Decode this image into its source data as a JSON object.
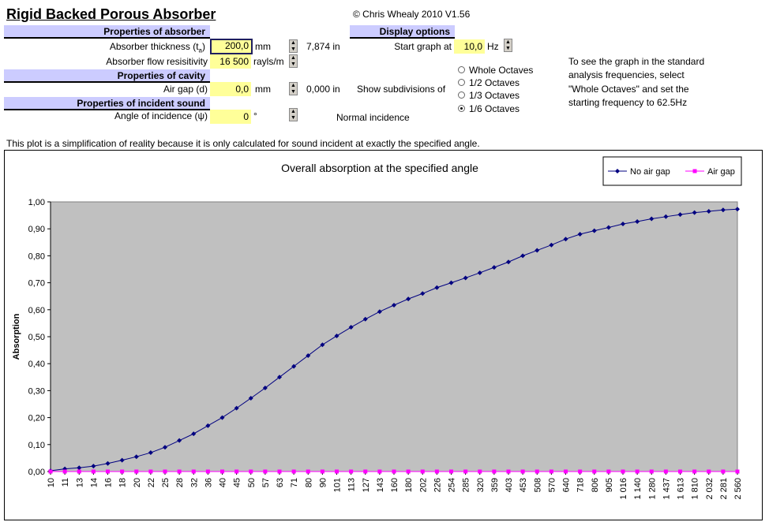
{
  "title": "Rigid Backed Porous Absorber",
  "copyright": "© Chris Whealy 2010  V1.56",
  "sections": {
    "absorber": "Properties of absorber",
    "cavity": "Properties of cavity",
    "incident": "Properties of incident sound",
    "display": "Display options"
  },
  "fields": {
    "thickness_label": "Absorber thickness (t",
    "thickness_sub": "a",
    "thickness_close": ")",
    "thickness_value": "200,0",
    "thickness_unit": "mm",
    "thickness_in": "7,874  in",
    "flow_label": "Absorber flow resisitivity",
    "flow_value": "16 500",
    "flow_unit": "rayls/m",
    "airgap_label": "Air gap (d)",
    "airgap_value": "0,0",
    "airgap_unit": "mm",
    "airgap_in": "0,000  in",
    "angle_label": "Angle of incidence (ψ)",
    "angle_value": "0",
    "angle_unit": "°",
    "angle_note": "Normal incidence",
    "start_label": "Start graph at",
    "start_value": "10,0",
    "start_unit": "Hz",
    "subdiv_label": "Show subdivisions of"
  },
  "radios": [
    {
      "label": "Whole Octaves",
      "selected": false
    },
    {
      "label": "1/2 Octaves",
      "selected": false
    },
    {
      "label": "1/3 Octaves",
      "selected": false
    },
    {
      "label": "1/6 Octaves",
      "selected": true
    }
  ],
  "help_lines": [
    "To see the graph in the standard",
    "analysis frequencies, select",
    "\"Whole Octaves\" and set the",
    "starting frequency to 62.5Hz"
  ],
  "note": "This plot is a simplification of reality because it is only calculated for sound incident at exactly the specified angle.",
  "chart_data": {
    "type": "line",
    "title": "Overall absorption at the specified angle",
    "ylabel": "Absorption",
    "ylim": [
      0,
      1
    ],
    "yticks": [
      "0,00",
      "0,10",
      "0,20",
      "0,30",
      "0,40",
      "0,50",
      "0,60",
      "0,70",
      "0,80",
      "0,90",
      "1,00"
    ],
    "categories": [
      "10",
      "11",
      "13",
      "14",
      "16",
      "18",
      "20",
      "22",
      "25",
      "28",
      "32",
      "36",
      "40",
      "45",
      "50",
      "57",
      "63",
      "71",
      "80",
      "90",
      "101",
      "113",
      "127",
      "143",
      "160",
      "180",
      "202",
      "226",
      "254",
      "285",
      "320",
      "359",
      "403",
      "453",
      "508",
      "570",
      "640",
      "718",
      "806",
      "905",
      "1 016",
      "1 140",
      "1 280",
      "1 437",
      "1 613",
      "1 810",
      "2 032",
      "2 281",
      "2 560"
    ],
    "series": [
      {
        "name": "No air gap",
        "color": "#000080",
        "values": [
          0.003,
          0.01,
          0.014,
          0.02,
          0.03,
          0.042,
          0.055,
          0.07,
          0.09,
          0.115,
          0.14,
          0.17,
          0.2,
          0.235,
          0.272,
          0.31,
          0.35,
          0.39,
          0.43,
          0.47,
          0.503,
          0.535,
          0.565,
          0.593,
          0.617,
          0.64,
          0.66,
          0.682,
          0.7,
          0.718,
          0.737,
          0.757,
          0.777,
          0.8,
          0.82,
          0.84,
          0.862,
          0.88,
          0.893,
          0.905,
          0.918,
          0.927,
          0.937,
          0.945,
          0.953,
          0.96,
          0.965,
          0.97,
          0.973
        ]
      },
      {
        "name": "Air gap",
        "color": "#ff00ff",
        "values": [
          0,
          0,
          0,
          0,
          0,
          0,
          0,
          0,
          0,
          0,
          0,
          0,
          0,
          0,
          0,
          0,
          0,
          0,
          0,
          0,
          0,
          0,
          0,
          0,
          0,
          0,
          0,
          0,
          0,
          0,
          0,
          0,
          0,
          0,
          0,
          0,
          0,
          0,
          0,
          0,
          0,
          0,
          0,
          0,
          0,
          0,
          0,
          0,
          0
        ]
      }
    ],
    "legend": "top-right",
    "plot_bg": "#c0c0c0"
  }
}
